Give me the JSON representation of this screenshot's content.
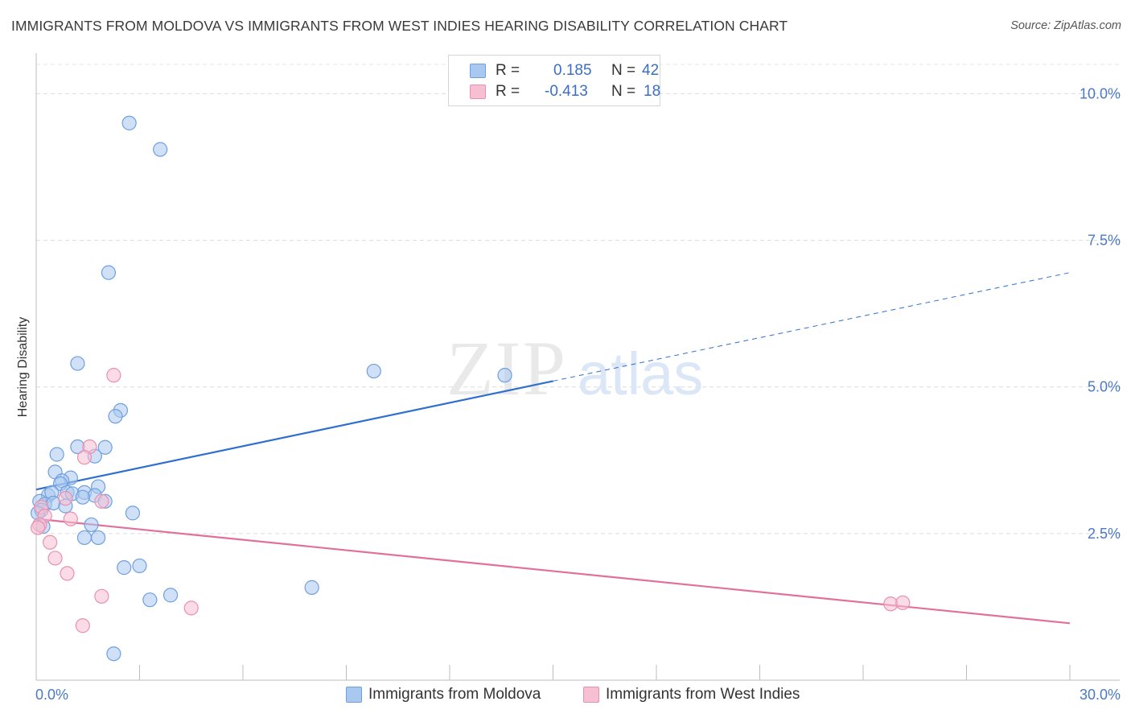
{
  "title": "IMMIGRANTS FROM MOLDOVA VS IMMIGRANTS FROM WEST INDIES HEARING DISABILITY CORRELATION CHART",
  "source": "Source: ZipAtlas.com",
  "watermark": {
    "zip": "ZIP",
    "atlas": "atlas"
  },
  "legend": {
    "rows": [
      {
        "r_label": "R =",
        "r_value": "0.185",
        "n_label": "N =",
        "n_value": "42",
        "color": "#a9c8f0",
        "border": "#6f9fe0"
      },
      {
        "r_label": "R =",
        "r_value": "-0.413",
        "n_label": "N =",
        "n_value": "18",
        "color": "#f7bfd2",
        "border": "#ea8fb0"
      }
    ]
  },
  "chart_data": {
    "type": "scatter",
    "xlabel": "",
    "ylabel": "Hearing Disability",
    "xlim": [
      0,
      30
    ],
    "ylim": [
      0,
      10.5
    ],
    "x_tick_labels": [
      "0.0%",
      "30.0%"
    ],
    "y_tick_labels": [
      "2.5%",
      "5.0%",
      "7.5%",
      "10.0%"
    ],
    "y_ticks": [
      2.5,
      5.0,
      7.5,
      10.0
    ],
    "x_minor_ticks": [
      3,
      6,
      9,
      12,
      15,
      18,
      21,
      24,
      27,
      30
    ],
    "grid": true,
    "legend_position": "top-center",
    "series": [
      {
        "name": "Immigrants from Moldova",
        "color": "#a9c8f0",
        "stroke": "#6f9fe0",
        "line_color": "#2f6fcf",
        "points": [
          [
            2.7,
            9.5
          ],
          [
            3.6,
            9.05
          ],
          [
            2.1,
            6.95
          ],
          [
            1.2,
            5.4
          ],
          [
            9.8,
            5.27
          ],
          [
            13.6,
            5.2
          ],
          [
            2.45,
            4.6
          ],
          [
            2.3,
            4.5
          ],
          [
            1.2,
            3.98
          ],
          [
            2.0,
            3.97
          ],
          [
            0.6,
            3.85
          ],
          [
            1.7,
            3.82
          ],
          [
            0.55,
            3.55
          ],
          [
            1.0,
            3.45
          ],
          [
            0.75,
            3.4
          ],
          [
            0.7,
            3.35
          ],
          [
            1.8,
            3.3
          ],
          [
            0.35,
            3.15
          ],
          [
            0.45,
            3.2
          ],
          [
            0.9,
            3.2
          ],
          [
            1.05,
            3.18
          ],
          [
            1.4,
            3.2
          ],
          [
            1.7,
            3.15
          ],
          [
            1.35,
            3.12
          ],
          [
            2.0,
            3.05
          ],
          [
            0.1,
            3.05
          ],
          [
            0.25,
            3.0
          ],
          [
            0.5,
            3.02
          ],
          [
            0.85,
            2.97
          ],
          [
            0.15,
            2.9
          ],
          [
            0.05,
            2.85
          ],
          [
            2.8,
            2.85
          ],
          [
            1.6,
            2.65
          ],
          [
            1.4,
            2.43
          ],
          [
            1.8,
            2.43
          ],
          [
            2.55,
            1.92
          ],
          [
            3.0,
            1.95
          ],
          [
            8.0,
            1.58
          ],
          [
            3.9,
            1.45
          ],
          [
            3.3,
            1.37
          ],
          [
            2.25,
            0.45
          ],
          [
            0.2,
            2.62
          ]
        ],
        "trend": {
          "x": [
            0,
            15
          ],
          "y": [
            3.25,
            5.1
          ]
        },
        "trend_dashed": {
          "x": [
            15,
            30
          ],
          "y": [
            5.1,
            6.95
          ]
        }
      },
      {
        "name": "Immigrants from West Indies",
        "color": "#f7bfd2",
        "stroke": "#ea8fb0",
        "line_color": "#e0719b",
        "points": [
          [
            2.25,
            5.2
          ],
          [
            1.55,
            3.98
          ],
          [
            1.4,
            3.8
          ],
          [
            0.85,
            3.1
          ],
          [
            1.9,
            3.05
          ],
          [
            0.15,
            2.95
          ],
          [
            0.25,
            2.8
          ],
          [
            1.0,
            2.75
          ],
          [
            0.1,
            2.65
          ],
          [
            0.05,
            2.6
          ],
          [
            0.4,
            2.35
          ],
          [
            0.55,
            2.08
          ],
          [
            0.9,
            1.82
          ],
          [
            1.9,
            1.43
          ],
          [
            4.5,
            1.23
          ],
          [
            1.35,
            0.93
          ],
          [
            24.8,
            1.3
          ],
          [
            25.15,
            1.32
          ]
        ],
        "trend": {
          "x": [
            0,
            30
          ],
          "y": [
            2.75,
            0.97
          ]
        }
      }
    ]
  }
}
